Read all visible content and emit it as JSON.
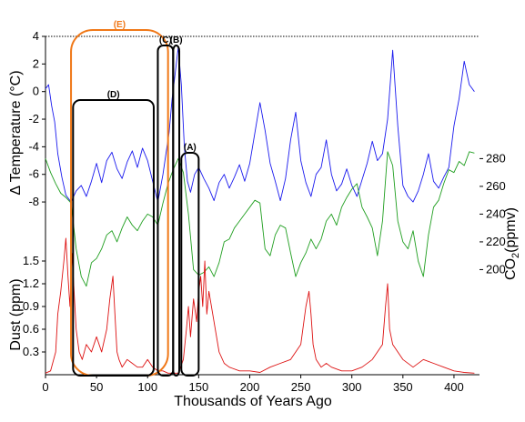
{
  "chart_data": {
    "type": "line",
    "x_axis": {
      "label": "Thousands of Years Ago",
      "range": [
        0,
        425
      ],
      "ticks": [
        0,
        50,
        100,
        150,
        200,
        250,
        300,
        350,
        400
      ]
    },
    "panels": [
      {
        "name": "temperature",
        "ylabel_prefix": "Δ Temperature",
        "ylabel_unit": "(°C)",
        "range": [
          -10.5,
          4
        ],
        "ticks": [
          -8,
          -6,
          -4,
          -2,
          0,
          2,
          4
        ],
        "tick_labels": [
          "-8",
          "-6",
          "-4",
          "-2",
          "0",
          "2",
          "4"
        ],
        "color": "#1a1aee",
        "x": [
          0,
          3,
          6,
          9,
          12,
          16,
          20,
          25,
          30,
          35,
          40,
          45,
          50,
          55,
          60,
          65,
          70,
          75,
          80,
          85,
          90,
          95,
          100,
          105,
          110,
          115,
          118,
          121,
          124,
          127,
          130,
          133,
          136,
          139,
          142,
          146,
          150,
          155,
          160,
          165,
          170,
          175,
          180,
          185,
          190,
          195,
          200,
          205,
          210,
          215,
          220,
          225,
          230,
          235,
          240,
          245,
          250,
          255,
          260,
          265,
          270,
          275,
          280,
          285,
          290,
          295,
          300,
          305,
          310,
          315,
          320,
          325,
          330,
          335,
          340,
          345,
          350,
          355,
          360,
          365,
          370,
          375,
          380,
          385,
          390,
          395,
          400,
          405,
          410,
          415,
          420
        ],
        "y": [
          0.2,
          0.5,
          -1.0,
          -2.2,
          -4.5,
          -6.2,
          -7.5,
          -8.0,
          -7.2,
          -6.8,
          -7.6,
          -6.5,
          -5.2,
          -6.6,
          -5.0,
          -4.4,
          -5.6,
          -6.3,
          -5.1,
          -4.3,
          -5.5,
          -4.1,
          -5.0,
          -6.5,
          -8.0,
          -6.0,
          -4.5,
          -3.0,
          -0.5,
          1.3,
          3.2,
          0.5,
          -4.0,
          -6.5,
          -7.3,
          -6.0,
          -5.5,
          -6.3,
          -7.0,
          -7.9,
          -6.6,
          -6.0,
          -7.0,
          -6.2,
          -5.3,
          -6.5,
          -5.2,
          -3.0,
          -0.8,
          -2.8,
          -5.2,
          -6.5,
          -7.9,
          -6.3,
          -3.5,
          -1.5,
          -5.0,
          -6.6,
          -7.6,
          -6.0,
          -5.5,
          -3.5,
          -6.0,
          -7.2,
          -6.7,
          -5.6,
          -6.8,
          -7.6,
          -6.4,
          -5.2,
          -3.6,
          -5.0,
          -4.5,
          -2.0,
          3.0,
          -2.5,
          -6.8,
          -7.6,
          -8.0,
          -7.2,
          -6.0,
          -4.5,
          -6.5,
          -7.0,
          -6.2,
          -5.5,
          -2.5,
          -0.5,
          2.2,
          0.5,
          0.0
        ]
      },
      {
        "name": "co2",
        "ylabel_prefix": "CO",
        "ylabel_sub": "2",
        "ylabel_unit": "(ppmv)",
        "range": [
          178,
          296
        ],
        "ticks": [
          200,
          220,
          240,
          260,
          280
        ],
        "tick_labels": [
          "200",
          "220",
          "240",
          "260",
          "280"
        ],
        "color": "#1f9e1f",
        "x": [
          0,
          5,
          10,
          15,
          20,
          25,
          30,
          35,
          40,
          45,
          50,
          55,
          60,
          65,
          70,
          75,
          80,
          85,
          90,
          95,
          100,
          105,
          110,
          115,
          120,
          125,
          130,
          135,
          140,
          145,
          150,
          155,
          160,
          165,
          170,
          175,
          180,
          185,
          190,
          195,
          200,
          205,
          210,
          215,
          220,
          225,
          230,
          235,
          240,
          245,
          250,
          255,
          260,
          265,
          270,
          275,
          280,
          285,
          290,
          295,
          300,
          305,
          310,
          315,
          320,
          325,
          330,
          335,
          340,
          345,
          350,
          355,
          360,
          365,
          370,
          375,
          380,
          385,
          390,
          395,
          400,
          405,
          410,
          415,
          420
        ],
        "y": [
          280,
          270,
          262,
          255,
          252,
          248,
          215,
          195,
          188,
          205,
          208,
          215,
          225,
          228,
          220,
          230,
          238,
          232,
          228,
          235,
          240,
          238,
          232,
          248,
          262,
          272,
          280,
          270,
          240,
          200,
          196,
          198,
          202,
          195,
          205,
          220,
          222,
          230,
          235,
          240,
          245,
          250,
          248,
          215,
          210,
          225,
          232,
          230,
          212,
          195,
          205,
          212,
          222,
          215,
          222,
          235,
          240,
          232,
          245,
          252,
          258,
          262,
          245,
          238,
          230,
          210,
          235,
          285,
          275,
          235,
          220,
          215,
          228,
          206,
          195,
          225,
          245,
          250,
          262,
          272,
          270,
          278,
          275,
          285,
          284
        ]
      },
      {
        "name": "dust",
        "ylabel_prefix": "Dust",
        "ylabel_unit": "(ppm)",
        "range": [
          0,
          1.8
        ],
        "ticks": [
          0.3,
          0.6,
          0.9,
          1.2,
          1.5
        ],
        "tick_labels": [
          "0.3",
          "0.6",
          "0.9",
          "1.2",
          "1.5"
        ],
        "color": "#dd1111",
        "x": [
          0,
          5,
          10,
          12,
          15,
          18,
          20,
          22,
          24,
          26,
          28,
          30,
          33,
          36,
          40,
          45,
          50,
          55,
          60,
          63,
          66,
          68,
          70,
          72,
          75,
          80,
          85,
          90,
          95,
          100,
          105,
          110,
          115,
          120,
          125,
          130,
          135,
          138,
          140,
          142,
          145,
          148,
          150,
          152,
          154,
          156,
          158,
          160,
          165,
          170,
          175,
          180,
          190,
          200,
          210,
          220,
          230,
          240,
          250,
          255,
          258,
          260,
          262,
          265,
          270,
          275,
          280,
          290,
          300,
          310,
          320,
          330,
          333,
          335,
          337,
          340,
          345,
          350,
          360,
          370,
          380,
          390,
          400,
          410,
          420
        ],
        "y": [
          0.02,
          0.05,
          0.3,
          0.8,
          1.1,
          1.5,
          1.8,
          1.3,
          0.9,
          1.6,
          1.1,
          0.6,
          0.3,
          0.2,
          0.4,
          0.3,
          0.5,
          0.3,
          0.6,
          1.0,
          1.3,
          0.8,
          0.3,
          0.2,
          0.1,
          0.2,
          0.15,
          0.1,
          0.1,
          0.2,
          0.1,
          0.05,
          0.05,
          0.02,
          0.02,
          0.02,
          0.2,
          0.6,
          0.9,
          0.5,
          1.0,
          0.7,
          1.1,
          1.3,
          0.9,
          1.5,
          0.8,
          1.1,
          0.7,
          0.3,
          0.15,
          0.1,
          0.05,
          0.05,
          0.03,
          0.1,
          0.15,
          0.2,
          0.4,
          0.9,
          1.1,
          0.8,
          0.4,
          0.2,
          0.1,
          0.15,
          0.1,
          0.05,
          0.05,
          0.1,
          0.2,
          0.4,
          0.9,
          1.2,
          0.6,
          0.4,
          0.3,
          0.2,
          0.1,
          0.2,
          0.15,
          0.1,
          0.05,
          0.03,
          0.02
        ]
      }
    ],
    "annotations": [
      {
        "label": "(E)",
        "x_range": [
          25,
          120
        ],
        "color": "#f07818"
      },
      {
        "label": "(D)",
        "x_range": [
          27,
          106
        ],
        "color": "#000000"
      },
      {
        "label": "(C)",
        "x_range": [
          110,
          125
        ],
        "color": "#000000"
      },
      {
        "label": "(B)",
        "x_range": [
          125,
          131
        ],
        "color": "#000000"
      },
      {
        "label": "(A)",
        "x_range": [
          133,
          150
        ],
        "color": "#000000"
      }
    ]
  }
}
